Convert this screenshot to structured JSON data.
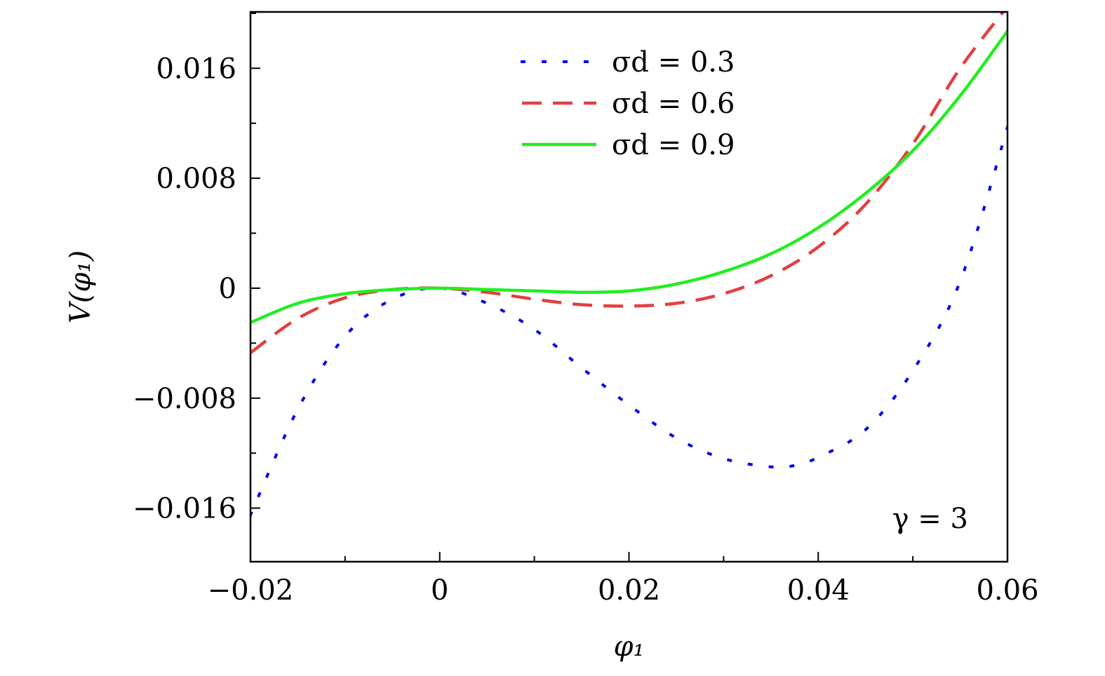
{
  "chart_data": {
    "type": "line",
    "xlabel": "φ₁",
    "ylabel": "V(φ₁)",
    "xlim": [
      -0.02,
      0.06
    ],
    "ylim": [
      -0.0199,
      0.0201
    ],
    "xticks": [
      -0.02,
      0,
      0.02,
      0.04,
      0.06
    ],
    "xtick_labels": [
      "−0.02",
      "0",
      "0.02",
      "0.04",
      "0.06"
    ],
    "yticks": [
      -0.016,
      -0.008,
      0,
      0.008,
      0.016
    ],
    "ytick_labels": [
      "−0.016",
      "−0.008",
      "0",
      "0.008",
      "0.016"
    ],
    "annotation": "γ = 3",
    "legend_position": "top-center",
    "grid": false,
    "series": [
      {
        "name": "σd = 0.3",
        "style": "dotted",
        "color": "#0000ee",
        "x": [
          -0.02,
          -0.015,
          -0.01,
          -0.005,
          0,
          0.005,
          0.01,
          0.015,
          0.02,
          0.025,
          0.03,
          0.035,
          0.0375,
          0.04,
          0.045,
          0.05,
          0.055,
          0.06
        ],
        "y": [
          -0.0165,
          -0.0088,
          -0.0035,
          -0.0008,
          0,
          -0.0011,
          -0.003,
          -0.0058,
          -0.0085,
          -0.0109,
          -0.0124,
          -0.013,
          -0.0129,
          -0.0123,
          -0.0103,
          -0.006,
          0.0005,
          0.0117
        ]
      },
      {
        "name": "σd = 0.6",
        "style": "dashed",
        "color": "#e34040",
        "x": [
          -0.02,
          -0.015,
          -0.01,
          -0.005,
          0,
          0.005,
          0.01,
          0.015,
          0.02,
          0.025,
          0.03,
          0.035,
          0.04,
          0.045,
          0.05,
          0.055,
          0.06
        ],
        "y": [
          -0.0047,
          -0.0022,
          -0.0007,
          -0.0001,
          0,
          -0.0003,
          -0.0008,
          -0.0012,
          -0.0013,
          -0.0011,
          -0.0004,
          0.0009,
          0.003,
          0.0061,
          0.0105,
          0.016,
          0.0205
        ]
      },
      {
        "name": "σd = 0.9",
        "style": "solid",
        "color": "#22ee22",
        "x": [
          -0.02,
          -0.015,
          -0.01,
          -0.005,
          0,
          0.005,
          0.01,
          0.015,
          0.02,
          0.025,
          0.03,
          0.035,
          0.04,
          0.045,
          0.05,
          0.055,
          0.06
        ],
        "y": [
          -0.0025,
          -0.0011,
          -0.0004,
          -0.0001,
          0,
          -0.0001,
          -0.0002,
          -0.0003,
          -0.0002,
          0.0003,
          0.0012,
          0.0025,
          0.0044,
          0.0069,
          0.01,
          0.014,
          0.0187
        ]
      }
    ]
  }
}
